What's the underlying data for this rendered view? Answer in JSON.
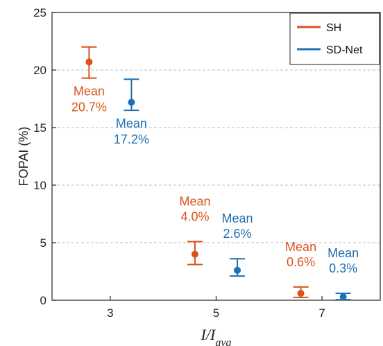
{
  "chart_data": {
    "type": "scatter",
    "xlabel_main": "I",
    "xlabel_frac": "/I",
    "xlabel_sub": "avg",
    "ylabel": "FOPAI (%)",
    "xlim": [
      1.9,
      8.1
    ],
    "ylim": [
      0,
      25
    ],
    "xticks": [
      3,
      5,
      7
    ],
    "yticks": [
      0,
      5,
      10,
      15,
      20,
      25
    ],
    "grid": true,
    "legend_position": "top-right",
    "series": [
      {
        "name": "SH",
        "color": "#d95319",
        "points": [
          {
            "x": 2.6,
            "y": 20.7,
            "lo": 19.3,
            "hi": 22.0,
            "label_line1": "Mean",
            "label_line2": "20.7%"
          },
          {
            "x": 4.6,
            "y": 4.0,
            "lo": 3.1,
            "hi": 5.1,
            "label_line1": "Mean",
            "label_line2": "4.0%"
          },
          {
            "x": 6.6,
            "y": 0.6,
            "lo": 0.25,
            "hi": 1.15,
            "label_line1": "Mean",
            "label_line2": "0.6%"
          }
        ]
      },
      {
        "name": "SD-Net",
        "color": "#1f6fb4",
        "points": [
          {
            "x": 3.4,
            "y": 17.2,
            "lo": 16.5,
            "hi": 19.2,
            "label_line1": "Mean",
            "label_line2": "17.2%"
          },
          {
            "x": 5.4,
            "y": 2.6,
            "lo": 2.1,
            "hi": 3.6,
            "label_line1": "Mean",
            "label_line2": "2.6%"
          },
          {
            "x": 7.4,
            "y": 0.3,
            "lo": 0.05,
            "hi": 0.6,
            "label_line1": "Mean",
            "label_line2": "0.3%"
          }
        ]
      }
    ]
  }
}
